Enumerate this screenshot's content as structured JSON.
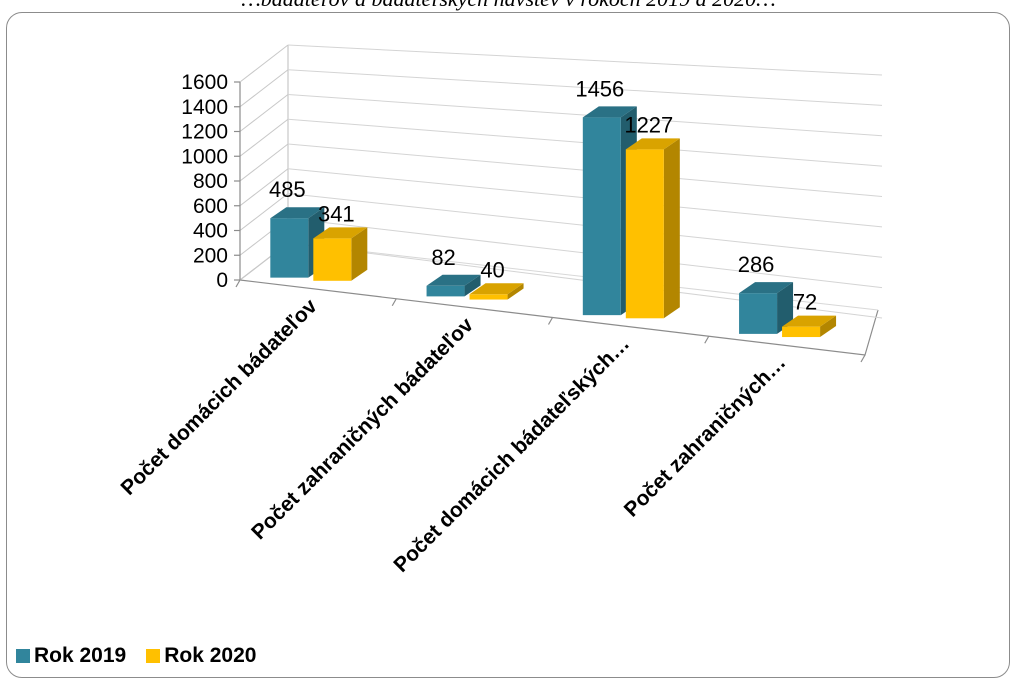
{
  "caption": "…bádateľov a bádateľských návštev v rokoch 2019 a 2020…",
  "chart_data": {
    "type": "bar",
    "title": "",
    "xlabel": "",
    "ylabel": "",
    "ylim": [
      0,
      1600
    ],
    "yticks": [
      0,
      200,
      400,
      600,
      800,
      1000,
      1200,
      1400,
      1600
    ],
    "grid": true,
    "legend_position": "bottom-left",
    "categories": [
      "Počet domácich bádateľov",
      "Počet zahraničných bádateľov",
      "Počet domácich bádateľských…",
      "Počet zahraničných…"
    ],
    "series": [
      {
        "name": "Rok 2019",
        "color": "#31859C",
        "values": [
          485,
          82,
          1456,
          286
        ]
      },
      {
        "name": "Rok 2020",
        "color": "#FFC000",
        "values": [
          341,
          40,
          1227,
          72
        ]
      }
    ]
  }
}
